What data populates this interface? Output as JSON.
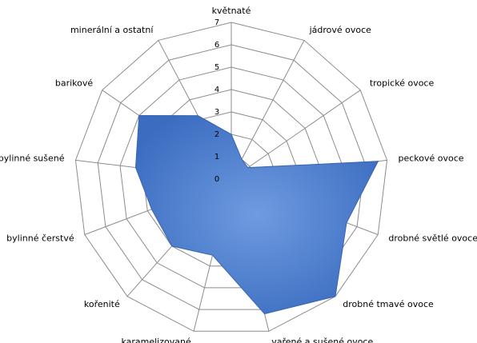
{
  "chart_data": {
    "type": "radar",
    "categories": [
      "květnaté",
      "jádrové ovoce",
      "tropické ovoce",
      "peckové ovoce",
      "drobné světlé ovoce",
      "drobné tmavé ovoce",
      "vařené a sušené ovoce",
      "karamelizované",
      "kořenité",
      "bylinné čerstvé",
      "bylinné sušené",
      "barikové",
      "minerální a ostatní"
    ],
    "values": [
      2,
      1,
      0.9,
      6.6,
      5.5,
      7,
      6.2,
      3.5,
      4,
      3.8,
      4.3,
      5,
      3.2
    ],
    "color": "#4a7ed0",
    "ylim": [
      0,
      7
    ],
    "yticks": [
      0,
      1,
      2,
      3,
      4,
      5,
      6,
      7
    ],
    "grid": true
  }
}
